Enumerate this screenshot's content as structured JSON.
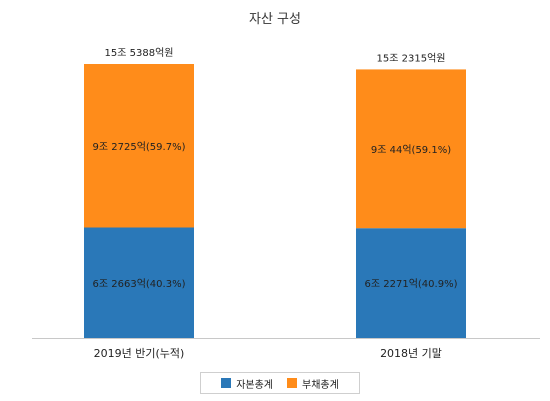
{
  "chart_data": {
    "type": "bar",
    "stacked": true,
    "title": "자산 구성",
    "categories": [
      "2019년 반기(누적)",
      "2018년 기말"
    ],
    "series": [
      {
        "name": "자본총계",
        "color": "#2a78b8",
        "values": [
          62663,
          62271
        ],
        "labels": [
          "6조 2663억(40.3%)",
          "6조 2271억(40.9%)"
        ]
      },
      {
        "name": "부채총계",
        "color": "#ff8c1a",
        "values": [
          92725,
          90044
        ],
        "labels": [
          "9조 2725억(59.7%)",
          "9조 44억(59.1%)"
        ]
      }
    ],
    "totals": [
      "15조 5388억원",
      "15조 2315억원"
    ],
    "unit": "억원",
    "legend_position": "bottom",
    "grid": false
  }
}
